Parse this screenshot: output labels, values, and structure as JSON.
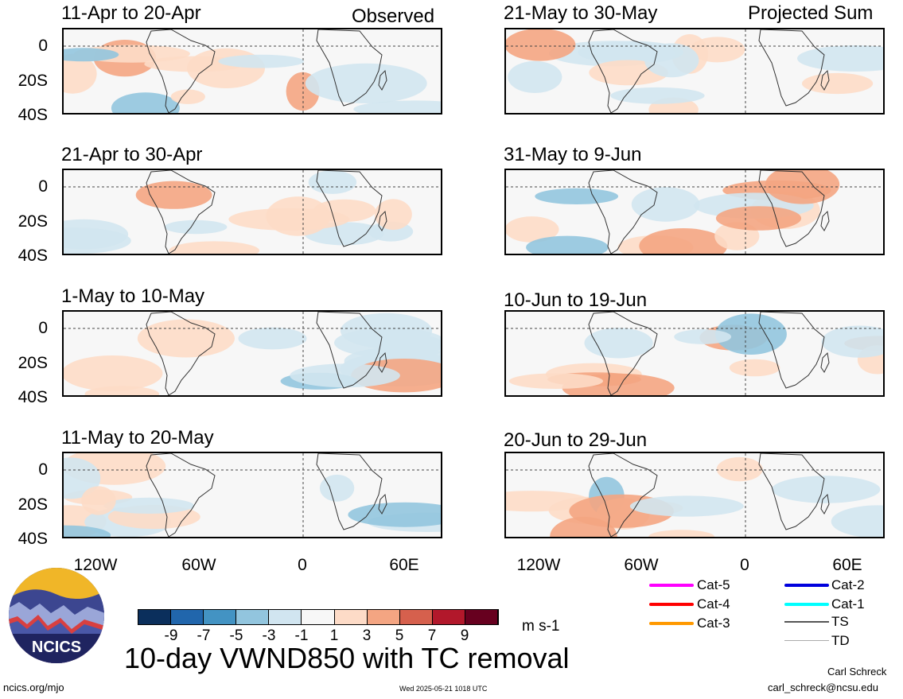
{
  "observed_label": "Observed",
  "projected_label": "Projected Sum",
  "left_panels": [
    {
      "title": "11-Apr to 20-Apr"
    },
    {
      "title": "21-Apr to 30-Apr"
    },
    {
      "title": "1-May to 10-May"
    },
    {
      "title": "11-May to 20-May"
    }
  ],
  "right_panels": [
    {
      "title": "21-May to 30-May"
    },
    {
      "title": "31-May to 9-Jun"
    },
    {
      "title": "10-Jun to 19-Jun"
    },
    {
      "title": "20-Jun to 29-Jun"
    }
  ],
  "y_ticks": [
    "0",
    "20S",
    "40S"
  ],
  "x_ticks": [
    "120W",
    "60W",
    "0",
    "60E"
  ],
  "colorbar": {
    "labels": [
      "-9",
      "-7",
      "-5",
      "-3",
      "-1",
      "1",
      "3",
      "5",
      "7",
      "9"
    ],
    "colors": [
      "#0b2f5c",
      "#2166ac",
      "#4393c3",
      "#92c5de",
      "#d1e5f0",
      "#f7f7f7",
      "#fddbc7",
      "#f4a582",
      "#d6604d",
      "#b2182b",
      "#67001f"
    ],
    "unit": "m s-1"
  },
  "tc_legend": [
    {
      "label": "Cat-5",
      "color": "#ff00ff"
    },
    {
      "label": "Cat-4",
      "color": "#ff0000"
    },
    {
      "label": "Cat-3",
      "color": "#ff9900"
    },
    {
      "label": "Cat-2",
      "color": "#0000dd"
    },
    {
      "label": "Cat-1",
      "color": "#00ffff"
    },
    {
      "label": "TS",
      "color": "#555555"
    },
    {
      "label": "TD",
      "color": "#aaaaaa"
    }
  ],
  "logo_text": "NCICS",
  "main_title": "10-day VWND850 with TC removal",
  "footer_left": "ncics.org/mjo",
  "footer_center": "Wed 2025-05-21 1018 UTC",
  "author_name": "Carl Schreck",
  "author_email": "carl_schreck@ncsu.edu"
}
